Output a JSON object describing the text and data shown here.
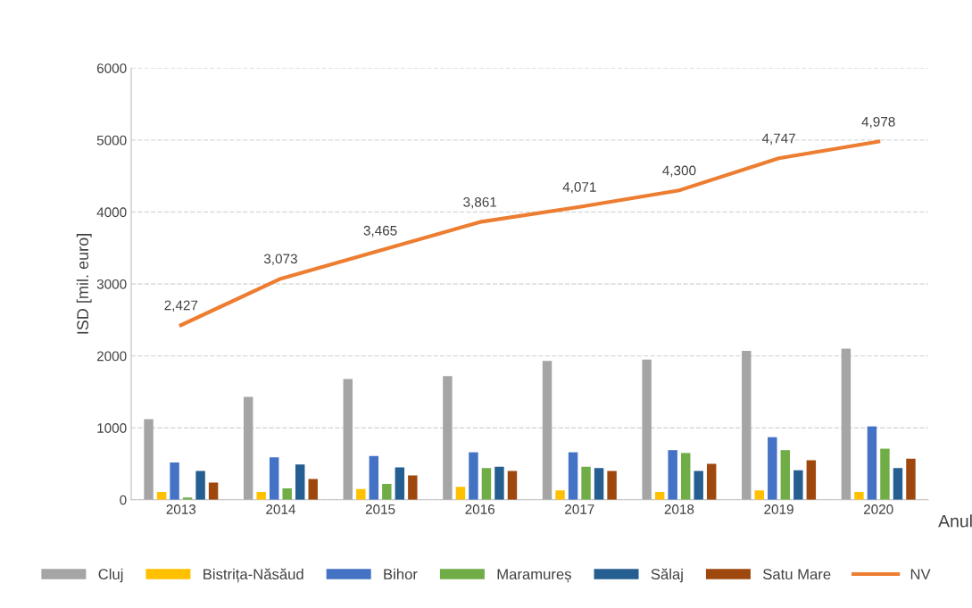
{
  "chart_data": {
    "type": "bar",
    "xlabel": "Anul",
    "ylabel": "ISD [mil. euro]",
    "categories": [
      "2013",
      "2014",
      "2015",
      "2016",
      "2017",
      "2018",
      "2019",
      "2020"
    ],
    "series": [
      {
        "name": "Cluj",
        "color": "#a5a5a5",
        "values": [
          1120,
          1430,
          1680,
          1720,
          1930,
          1950,
          2070,
          2100
        ]
      },
      {
        "name": "Bistrița-Năsăud",
        "color": "#ffc000",
        "values": [
          110,
          110,
          150,
          180,
          130,
          110,
          130,
          110
        ]
      },
      {
        "name": "Bihor",
        "color": "#4472c4",
        "values": [
          520,
          590,
          610,
          660,
          660,
          690,
          870,
          1020
        ]
      },
      {
        "name": "Maramureș",
        "color": "#70ad47",
        "values": [
          30,
          160,
          220,
          440,
          460,
          650,
          690,
          710
        ]
      },
      {
        "name": "Sălaj",
        "color": "#255e91",
        "values": [
          400,
          490,
          450,
          460,
          440,
          400,
          410,
          440
        ]
      },
      {
        "name": "Satu Mare",
        "color": "#9e480e",
        "values": [
          240,
          290,
          340,
          400,
          400,
          500,
          550,
          570
        ]
      },
      {
        "name": "NV",
        "type": "line",
        "color": "#ed7d31",
        "marker": "none",
        "values": [
          2427,
          3073,
          3465,
          3861,
          4071,
          4300,
          4747,
          4978
        ],
        "value_labels": [
          "2,427",
          "3,073",
          "3,465",
          "3,861",
          "4,071",
          "4,300",
          "4,747",
          "4,978"
        ]
      }
    ],
    "ylim": [
      0,
      6000
    ],
    "yticks": [
      0,
      1000,
      2000,
      3000,
      4000,
      5000,
      6000
    ],
    "grid": "y",
    "legend": "bottom"
  }
}
